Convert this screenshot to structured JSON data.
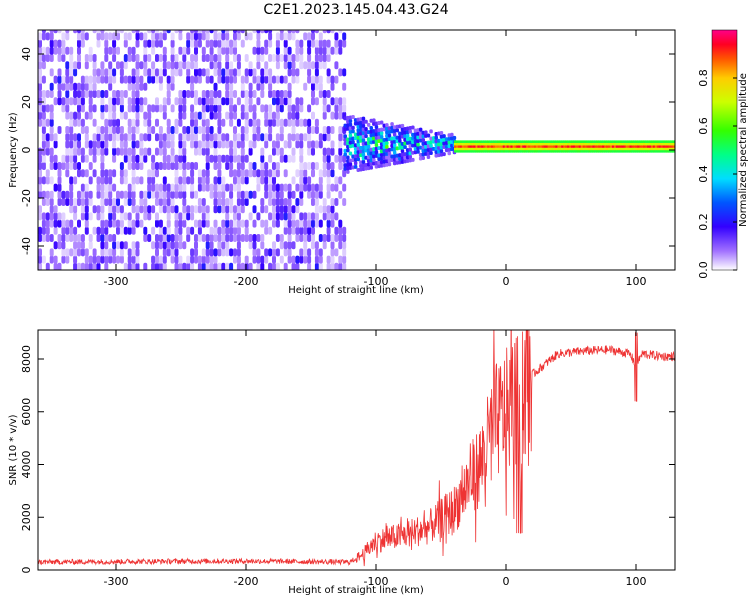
{
  "title": "C2E1.2023.145.04.43.G24",
  "chart_data": [
    {
      "type": "heatmap",
      "xlabel": "Height of straight line (km)",
      "ylabel": "Frequency (Hz)",
      "xlim": [
        -360,
        130
      ],
      "ylim": [
        -50,
        50
      ],
      "xticks": [
        -300,
        -200,
        -100,
        0,
        100
      ],
      "yticks": [
        -40,
        -20,
        0,
        20,
        40
      ],
      "colorbar": {
        "label": "Normalized spectral amplitude",
        "range": [
          0.0,
          1.0
        ],
        "ticks": [
          0.0,
          0.2,
          0.4,
          0.6,
          0.8
        ],
        "colormap": "rainbow (white/purple low → red/magenta high)"
      },
      "regions": [
        {
          "x": [
            -360,
            -125
          ],
          "freq_spread": [
            -50,
            50
          ],
          "amplitude": [
            0.02,
            0.2
          ]
        },
        {
          "x": [
            -125,
            -40
          ],
          "freq_spread": [
            -8,
            10
          ],
          "amplitude": [
            0.1,
            0.5
          ]
        },
        {
          "x": [
            -40,
            130
          ],
          "freq_center": 1,
          "freq_spread": [
            -1,
            3
          ],
          "amplitude": [
            0.6,
            0.95
          ]
        }
      ]
    },
    {
      "type": "line",
      "xlabel": "Height of straight line (km)",
      "ylabel": "SNR (10 * v/v)",
      "xlim": [
        -360,
        130
      ],
      "ylim": [
        0,
        9100
      ],
      "xticks": [
        -300,
        -200,
        -100,
        0,
        100
      ],
      "yticks": [
        0,
        2000,
        4000,
        6000,
        8000
      ],
      "color": "#ee3333",
      "series": [
        {
          "x": [
            -360,
            -300,
            -200,
            -120,
            -110,
            -100,
            -80,
            -60,
            -40,
            -30,
            -20,
            -15,
            -10,
            0,
            10,
            20,
            30,
            40,
            60,
            80,
            95,
            100,
            105,
            120,
            130
          ],
          "y": [
            300,
            320,
            340,
            300,
            600,
            1100,
            1300,
            1600,
            2300,
            3200,
            4000,
            4600,
            5500,
            6000,
            6500,
            7400,
            7800,
            8200,
            8300,
            8350,
            8200,
            7800,
            8200,
            8100,
            8100
          ]
        }
      ]
    }
  ]
}
